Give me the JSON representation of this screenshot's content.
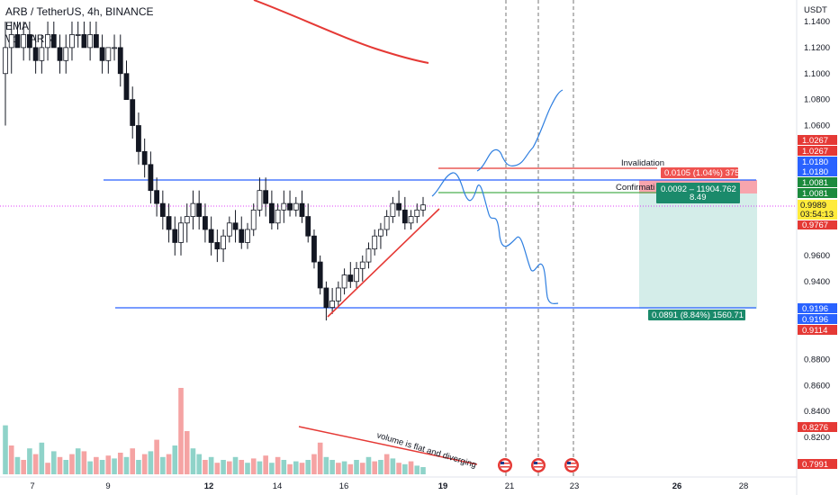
{
  "header": {
    "symbol": "ARB / TetherUS, 4h, BINANCE",
    "ema": "EMA",
    "vol": "Vol · ARB"
  },
  "axis": {
    "currency": "USDT",
    "y_ticks": [
      "1.1400",
      "1.1200",
      "1.1000",
      "1.0800",
      "1.0600",
      "0.9600",
      "0.9400",
      "0.8800",
      "0.8600",
      "0.8400",
      "0.8200"
    ],
    "x_ticks": [
      "7",
      "9",
      "12",
      "14",
      "16",
      "19",
      "21",
      "23",
      "26",
      "28"
    ]
  },
  "price_labels": {
    "p1": "1.0267",
    "p2": "1.0267",
    "p3": "1.0180",
    "p4": "1.0180",
    "p5": "1.0081",
    "p6": "1.0081",
    "current": "0.9989",
    "countdown": "03:54:13",
    "p8": "0.9767",
    "s1": "0.9196",
    "s2": "0.9196",
    "s3": "0.9114",
    "v1": "0.8276",
    "v2": "0.7991"
  },
  "annotations": {
    "invalidation": "Invalidation",
    "confirmation": "Confirmati",
    "risk_box": "0.0105 (1.04%) 375",
    "entry_box_line1": "0.0092 – 11904.762",
    "entry_box_line2": "8.49",
    "target_box": "0.0891 (8.84%) 1560.71",
    "volume_note": "volume is flat and diverging"
  },
  "colors": {
    "bull": "#26a69a",
    "bear": "#ef5350",
    "vol_bull": "#8fd3c9",
    "vol_bear": "#f5a3a3",
    "ema": "#e53935",
    "level": "#2962ff",
    "projection": "#2f7fe0",
    "invalidation": "#e53935",
    "confirmation": "#4caf50",
    "target_zone": "#d4ede9",
    "stop_zone": "#f8a5ad",
    "current_price": "#d500f9"
  },
  "chart_data": {
    "type": "candlestick",
    "interval": "4h",
    "y_range": [
      0.79,
      1.15
    ],
    "levels": {
      "resistance": 1.018,
      "support": 0.9196,
      "invalidation": 1.0267,
      "confirmation": 1.0081,
      "current": 0.9989
    },
    "candles": [
      [
        1.1,
        1.14,
        1.06,
        1.12
      ],
      [
        1.12,
        1.14,
        1.1,
        1.13
      ],
      [
        1.13,
        1.14,
        1.12,
        1.12
      ],
      [
        1.12,
        1.14,
        1.11,
        1.13
      ],
      [
        1.13,
        1.14,
        1.11,
        1.12
      ],
      [
        1.12,
        1.13,
        1.1,
        1.11
      ],
      [
        1.11,
        1.13,
        1.1,
        1.12
      ],
      [
        1.12,
        1.14,
        1.11,
        1.13
      ],
      [
        1.13,
        1.14,
        1.12,
        1.12
      ],
      [
        1.12,
        1.13,
        1.1,
        1.11
      ],
      [
        1.11,
        1.13,
        1.1,
        1.12
      ],
      [
        1.12,
        1.14,
        1.11,
        1.13
      ],
      [
        1.13,
        1.14,
        1.12,
        1.13
      ],
      [
        1.13,
        1.14,
        1.12,
        1.12
      ],
      [
        1.12,
        1.14,
        1.11,
        1.13
      ],
      [
        1.13,
        1.14,
        1.12,
        1.12
      ],
      [
        1.12,
        1.13,
        1.1,
        1.11
      ],
      [
        1.11,
        1.12,
        1.1,
        1.12
      ],
      [
        1.12,
        1.13,
        1.11,
        1.12
      ],
      [
        1.12,
        1.13,
        1.09,
        1.1
      ],
      [
        1.1,
        1.11,
        1.08,
        1.08
      ],
      [
        1.08,
        1.09,
        1.05,
        1.06
      ],
      [
        1.06,
        1.07,
        1.03,
        1.04
      ],
      [
        1.04,
        1.05,
        1.02,
        1.03
      ],
      [
        1.03,
        1.04,
        1.0,
        1.01
      ],
      [
        1.01,
        1.02,
        0.99,
        1.0
      ],
      [
        1.0,
        1.01,
        0.98,
        0.99
      ],
      [
        0.99,
        1.0,
        0.97,
        0.98
      ],
      [
        0.98,
        0.99,
        0.96,
        0.97
      ],
      [
        0.97,
        0.99,
        0.96,
        0.985
      ],
      [
        0.985,
        1.0,
        0.97,
        0.99
      ],
      [
        0.99,
        1.01,
        0.98,
        1.0
      ],
      [
        1.0,
        1.01,
        0.98,
        0.99
      ],
      [
        0.99,
        1.0,
        0.97,
        0.98
      ],
      [
        0.98,
        0.99,
        0.96,
        0.97
      ],
      [
        0.97,
        0.98,
        0.955,
        0.965
      ],
      [
        0.965,
        0.98,
        0.955,
        0.975
      ],
      [
        0.975,
        0.99,
        0.97,
        0.985
      ],
      [
        0.985,
        0.995,
        0.97,
        0.98
      ],
      [
        0.98,
        0.99,
        0.965,
        0.97
      ],
      [
        0.97,
        0.985,
        0.965,
        0.98
      ],
      [
        0.98,
        1.0,
        0.975,
        0.995
      ],
      [
        0.995,
        1.02,
        0.99,
        1.01
      ],
      [
        1.01,
        1.02,
        0.99,
        1.0
      ],
      [
        1.0,
        1.01,
        0.98,
        0.985
      ],
      [
        0.985,
        1.0,
        0.98,
        0.995
      ],
      [
        0.995,
        1.01,
        0.985,
        1.0
      ],
      [
        1.0,
        1.01,
        0.99,
        0.995
      ],
      [
        0.995,
        1.005,
        0.99,
        1.0
      ],
      [
        1.0,
        1.01,
        0.985,
        0.99
      ],
      [
        0.99,
        1.0,
        0.97,
        0.975
      ],
      [
        0.975,
        0.98,
        0.95,
        0.955
      ],
      [
        0.955,
        0.96,
        0.93,
        0.935
      ],
      [
        0.935,
        0.94,
        0.91,
        0.92
      ],
      [
        0.92,
        0.935,
        0.915,
        0.925
      ],
      [
        0.925,
        0.94,
        0.92,
        0.935
      ],
      [
        0.935,
        0.95,
        0.93,
        0.945
      ],
      [
        0.945,
        0.955,
        0.935,
        0.94
      ],
      [
        0.94,
        0.955,
        0.935,
        0.95
      ],
      [
        0.95,
        0.96,
        0.94,
        0.955
      ],
      [
        0.955,
        0.97,
        0.95,
        0.965
      ],
      [
        0.965,
        0.98,
        0.96,
        0.975
      ],
      [
        0.975,
        0.985,
        0.965,
        0.98
      ],
      [
        0.98,
        0.995,
        0.975,
        0.99
      ],
      [
        0.99,
        1.005,
        0.985,
        1.0
      ],
      [
        1.0,
        1.01,
        0.99,
        0.995
      ],
      [
        0.995,
        1.005,
        0.98,
        0.985
      ],
      [
        0.985,
        0.995,
        0.98,
        0.99
      ],
      [
        0.99,
        1.0,
        0.985,
        0.995
      ],
      [
        0.995,
        1.005,
        0.99,
        0.9989
      ]
    ],
    "volume": [
      [
        0.34,
        1
      ],
      [
        0.2,
        0
      ],
      [
        0.12,
        1
      ],
      [
        0.1,
        0
      ],
      [
        0.18,
        1
      ],
      [
        0.14,
        0
      ],
      [
        0.22,
        1
      ],
      [
        0.08,
        0
      ],
      [
        0.16,
        1
      ],
      [
        0.12,
        0
      ],
      [
        0.1,
        1
      ],
      [
        0.14,
        0
      ],
      [
        0.18,
        1
      ],
      [
        0.16,
        0
      ],
      [
        0.09,
        1
      ],
      [
        0.12,
        0
      ],
      [
        0.1,
        1
      ],
      [
        0.13,
        0
      ],
      [
        0.11,
        1
      ],
      [
        0.15,
        0
      ],
      [
        0.12,
        1
      ],
      [
        0.18,
        0
      ],
      [
        0.1,
        1
      ],
      [
        0.14,
        0
      ],
      [
        0.16,
        1
      ],
      [
        0.24,
        0
      ],
      [
        0.12,
        1
      ],
      [
        0.14,
        0
      ],
      [
        0.2,
        1
      ],
      [
        0.6,
        0
      ],
      [
        0.3,
        0
      ],
      [
        0.18,
        1
      ],
      [
        0.14,
        1
      ],
      [
        0.1,
        0
      ],
      [
        0.12,
        1
      ],
      [
        0.08,
        0
      ],
      [
        0.1,
        1
      ],
      [
        0.09,
        0
      ],
      [
        0.12,
        1
      ],
      [
        0.1,
        0
      ],
      [
        0.08,
        1
      ],
      [
        0.11,
        0
      ],
      [
        0.09,
        1
      ],
      [
        0.13,
        0
      ],
      [
        0.08,
        1
      ],
      [
        0.12,
        0
      ],
      [
        0.1,
        1
      ],
      [
        0.07,
        0
      ],
      [
        0.09,
        1
      ],
      [
        0.08,
        0
      ],
      [
        0.1,
        1
      ],
      [
        0.14,
        0
      ],
      [
        0.22,
        0
      ],
      [
        0.12,
        1
      ],
      [
        0.1,
        1
      ],
      [
        0.08,
        0
      ],
      [
        0.09,
        1
      ],
      [
        0.07,
        0
      ],
      [
        0.1,
        1
      ],
      [
        0.08,
        0
      ],
      [
        0.12,
        1
      ],
      [
        0.09,
        0
      ],
      [
        0.1,
        1
      ],
      [
        0.14,
        0
      ],
      [
        0.11,
        1
      ],
      [
        0.08,
        0
      ],
      [
        0.07,
        1
      ],
      [
        0.09,
        0
      ],
      [
        0.06,
        1
      ],
      [
        0.05,
        1
      ]
    ]
  }
}
